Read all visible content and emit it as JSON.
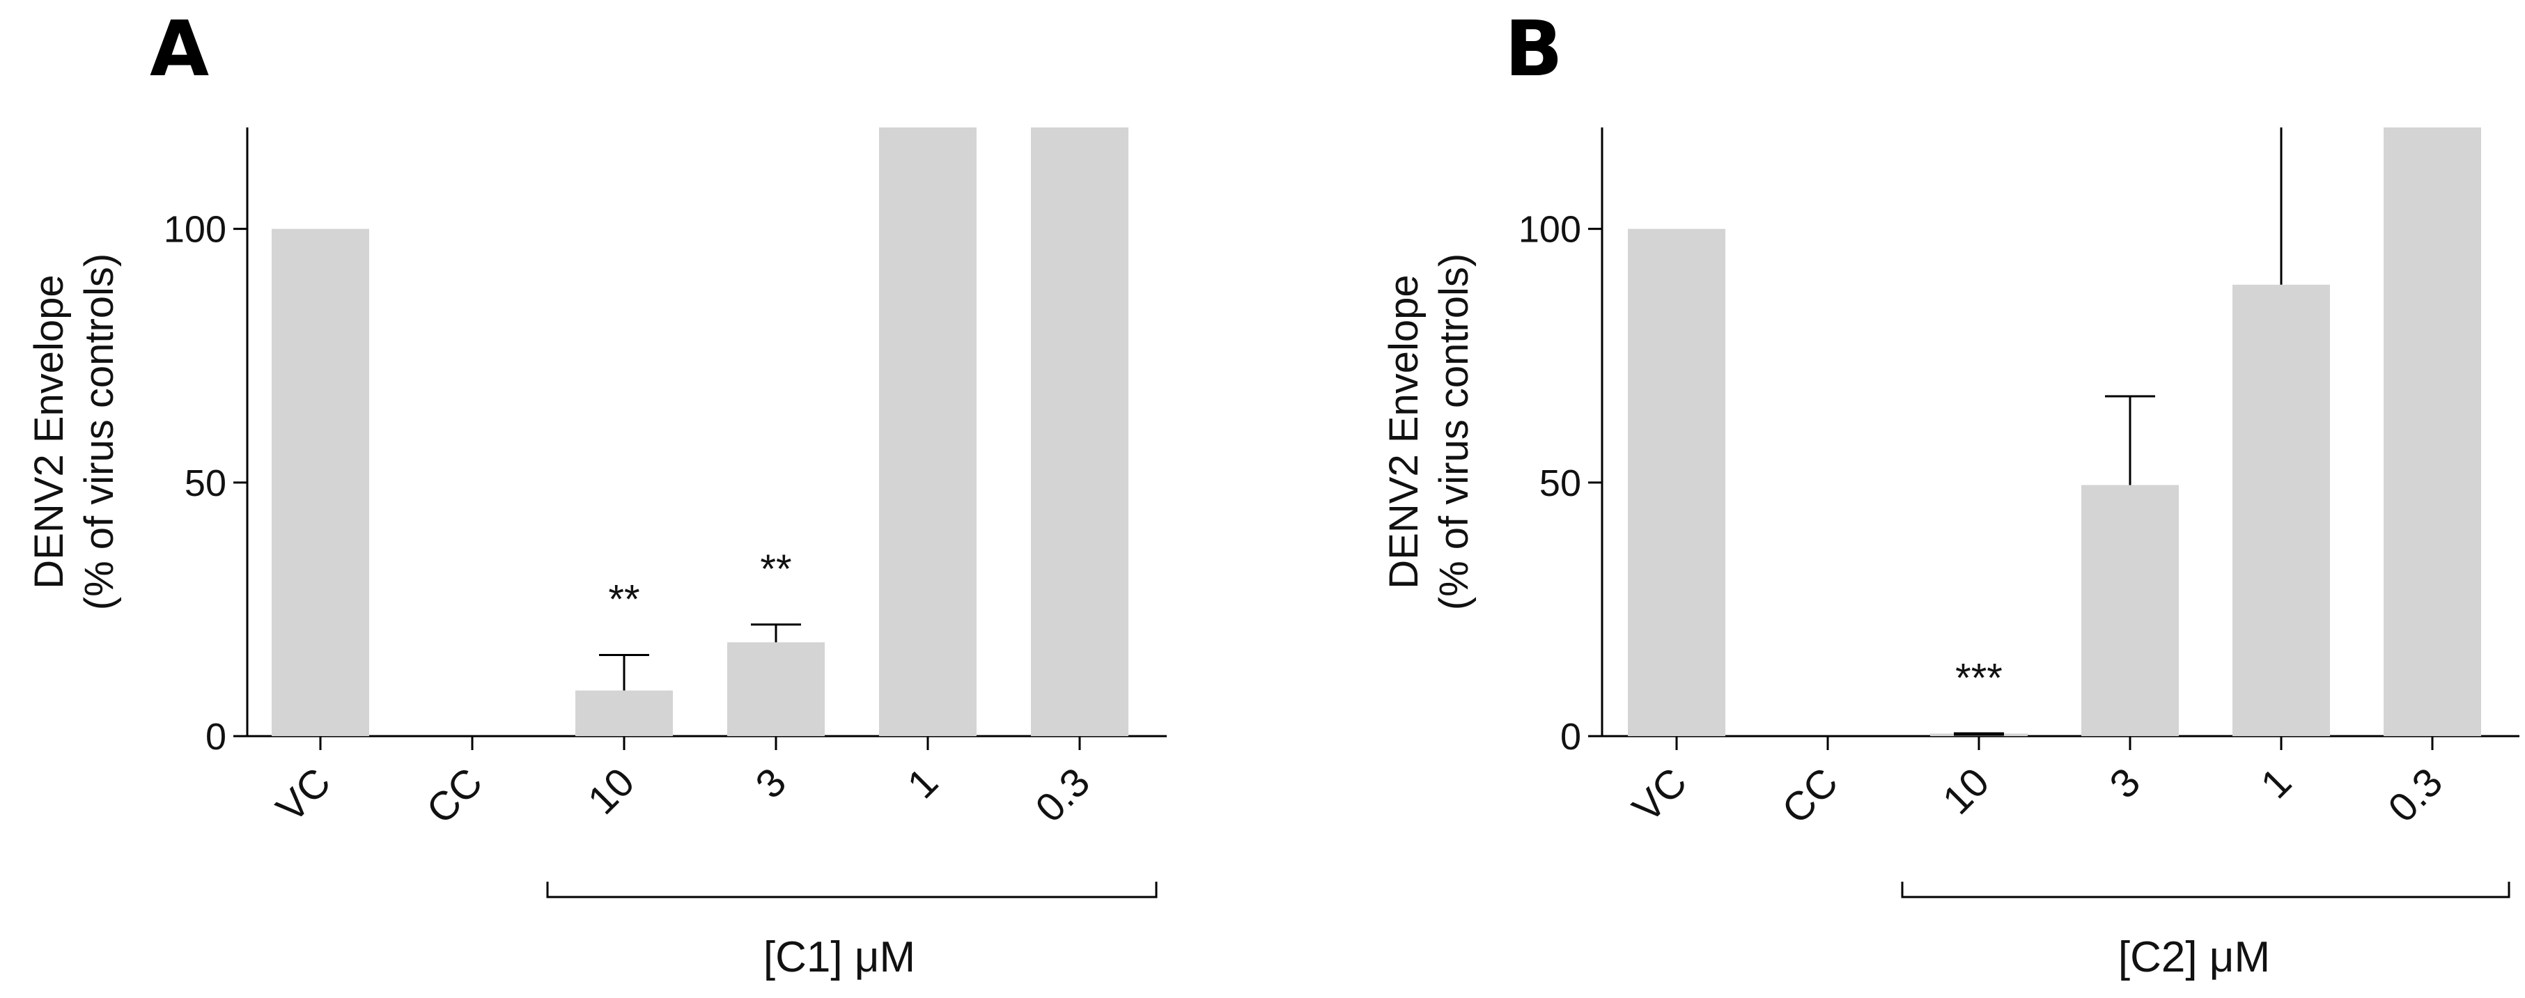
{
  "chart_data": [
    {
      "type": "bar",
      "panel_label": "A",
      "ylabel_line1": "DENV2 Envelope",
      "ylabel_line2": "(% of virus controls)",
      "ylim": [
        0,
        120
      ],
      "yticks": [
        "0",
        "50",
        "100"
      ],
      "categories": [
        "VC",
        "CC",
        "10",
        "3",
        "1",
        "0.3"
      ],
      "values": [
        100,
        0,
        9,
        18.5,
        120,
        120
      ],
      "error_upper": [
        null,
        null,
        16,
        22,
        null,
        null
      ],
      "significance": [
        "",
        "",
        "**",
        "**",
        "",
        ""
      ],
      "group_label": "[C1] μM",
      "group_start_index": 2,
      "group_end_index": 5,
      "bar_color": "#d4d4d4"
    },
    {
      "type": "bar",
      "panel_label": "B",
      "ylabel_line1": "DENV2 Envelope",
      "ylabel_line2": "(% of virus controls)",
      "ylim": [
        0,
        120
      ],
      "yticks": [
        "0",
        "50",
        "100"
      ],
      "categories": [
        "VC",
        "CC",
        "10",
        "3",
        "1",
        "0.3"
      ],
      "values": [
        100,
        0,
        0.5,
        49.5,
        89,
        120
      ],
      "error_upper": [
        null,
        null,
        null,
        67,
        120,
        null
      ],
      "significance": [
        "",
        "",
        "***",
        "",
        "",
        ""
      ],
      "group_label": "[C2] μM",
      "group_start_index": 2,
      "group_end_index": 5,
      "bar_color": "#d4d4d4"
    }
  ]
}
